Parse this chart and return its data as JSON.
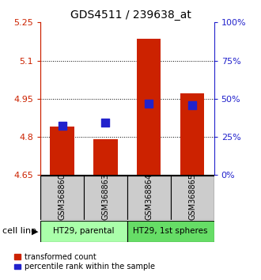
{
  "title": "GDS4511 / 239638_at",
  "categories": [
    "GSM368860",
    "GSM368863",
    "GSM368864",
    "GSM368865"
  ],
  "bar_bottom": 4.65,
  "bar_tops": [
    4.84,
    4.79,
    5.185,
    4.97
  ],
  "blue_y": [
    4.845,
    4.855,
    4.93,
    4.925
  ],
  "ylim": [
    4.65,
    5.25
  ],
  "yticks_left": [
    4.65,
    4.8,
    4.95,
    5.1,
    5.25
  ],
  "yticks_right": [
    0,
    25,
    50,
    75,
    100
  ],
  "bar_color": "#cc2200",
  "blue_color": "#2222cc",
  "cell_line_groups": [
    {
      "label": "HT29, parental",
      "indices": [
        0,
        1
      ],
      "color": "#aaffaa"
    },
    {
      "label": "HT29, 1st spheres",
      "indices": [
        2,
        3
      ],
      "color": "#66dd66"
    }
  ],
  "gsm_box_color": "#cccccc",
  "bar_width": 0.55,
  "blue_size": 55,
  "cell_line_label": "cell line",
  "legend_items": [
    "transformed count",
    "percentile rank within the sample"
  ],
  "title_fontsize": 10,
  "tick_fontsize": 8,
  "label_fontsize": 7.5,
  "gsm_fontsize": 7,
  "legend_fontsize": 7,
  "grid_yticks": [
    4.8,
    4.95,
    5.1
  ]
}
